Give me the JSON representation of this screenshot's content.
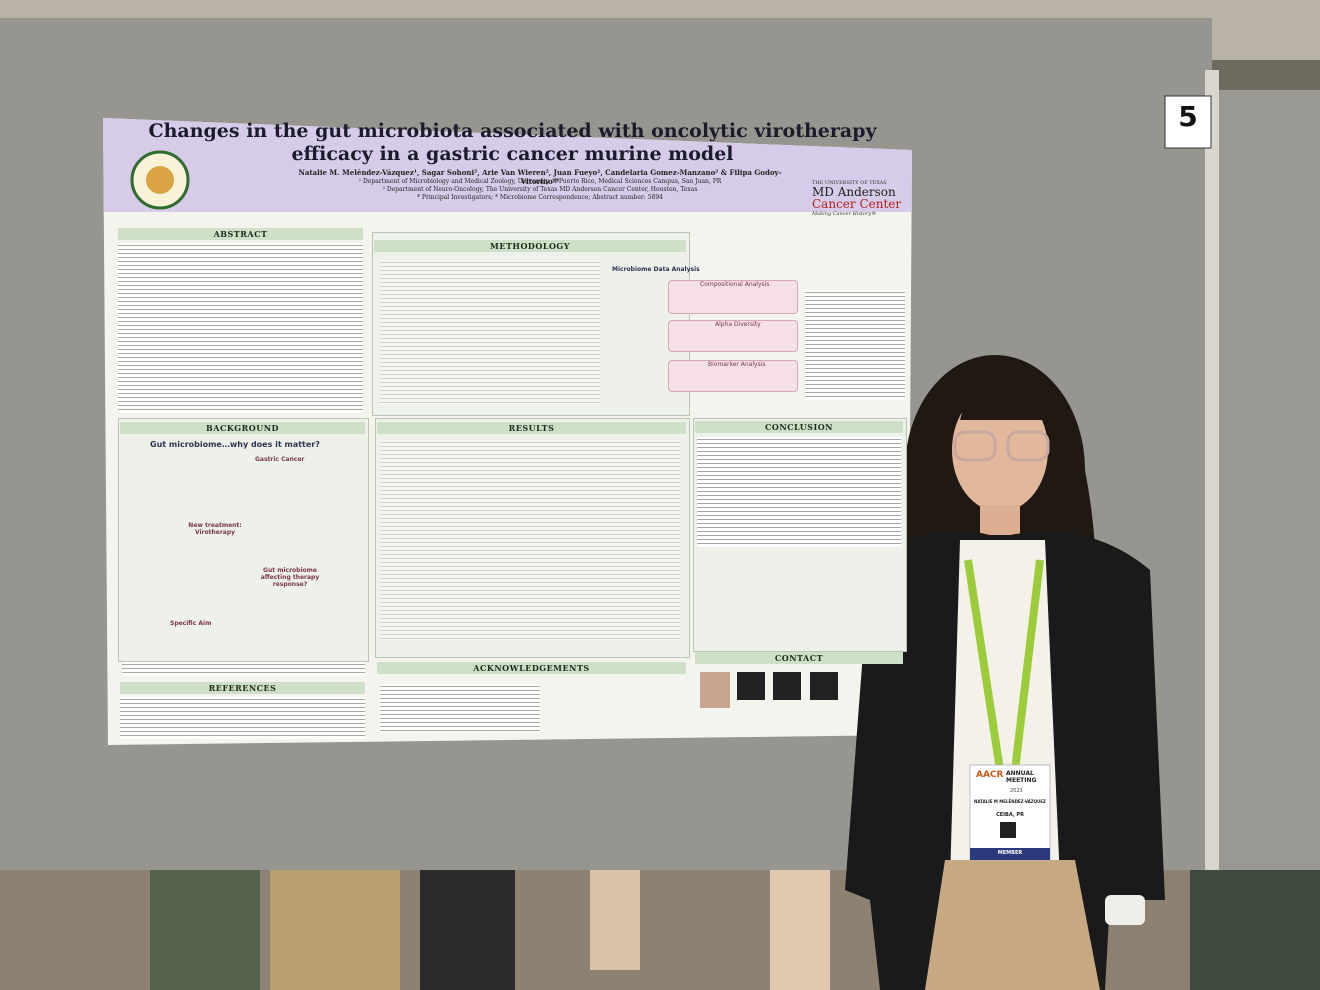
{
  "board_number": "5",
  "poster": {
    "title": "Changes in the gut microbiota associated with oncolytic virotherapy efficacy in a gastric cancer murine model",
    "authors": "Natalie M. Meléndez-Vázquez¹, Sagar Sohoni², Arie Van Wieren², Juan Fueyo², Candelaria Gomez-Manzano² & Filipa Godoy-Vitorino¹*",
    "affiliations": [
      "¹ Department of Microbiology and Medical Zoology, University of Puerto Rico, Medical Sciences Campus, San Juan, PR",
      "² Department of Neuro-Oncology, The University of Texas MD Anderson Cancer Center, Houston, Texas",
      "* Principal Investigators; * Microbiome Correspondence; Abstract number: 5894"
    ],
    "institution": {
      "line1": "THE UNIVERSITY OF TEXAS",
      "line2": "MD Anderson",
      "line3": "Cancer Center",
      "tagline": "Making Cancer History®"
    },
    "sections": {
      "abstract": "ABSTRACT",
      "methodology": "METHODOLOGY",
      "background": "BACKGROUND",
      "results": "RESULTS",
      "conclusion": "CONCLUSION",
      "acknowledgements": "ACKNOWLEDGEMENTS",
      "references": "REFERENCES",
      "contact": "CONTACT"
    },
    "methodology": {
      "heading": "Microbiome Data Analysis",
      "steps": [
        "Compositional Analysis",
        "Alpha Diversity",
        "Biomarker Analysis"
      ]
    },
    "background": {
      "heading": "Gut microbiome…why does it matter?",
      "topics": [
        "Gastric Cancer",
        "New treatment: Virotherapy",
        "Gut microbiome affecting therapy response?",
        "Specific Aim"
      ]
    }
  },
  "badge": {
    "event": "AACR",
    "meeting": "ANNUAL MEETING",
    "year": "2023",
    "name": "NATALIE M MELÉNDEZ-VÁZQUEZ",
    "location": "CEIBA, PR",
    "role": "MEMBER"
  }
}
